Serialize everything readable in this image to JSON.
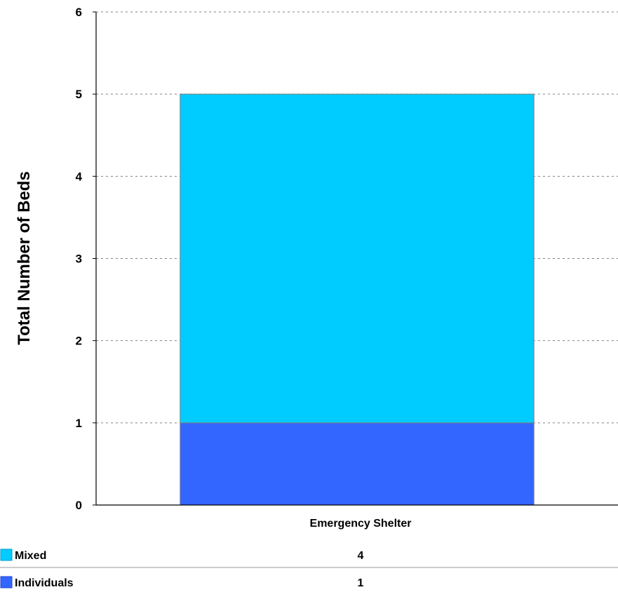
{
  "chart_data": {
    "type": "bar",
    "stacked": true,
    "title": "",
    "xlabel": "",
    "ylabel": "Total Number of Beds",
    "categories": [
      "Emergency Shelter"
    ],
    "series": [
      {
        "name": "Individuals",
        "values": [
          1
        ],
        "color": "#3366ff"
      },
      {
        "name": "Mixed",
        "values": [
          4
        ],
        "color": "#00ccff"
      }
    ],
    "ylim": [
      0,
      6
    ],
    "yticks": [
      "0",
      "1",
      "2",
      "3",
      "4",
      "5",
      "6"
    ],
    "grid": "horizontal dashed",
    "legend_placement": "bottom data table",
    "data_table": [
      {
        "series": "Mixed",
        "value": "4"
      },
      {
        "series": "Individuals",
        "value": "1"
      }
    ]
  }
}
